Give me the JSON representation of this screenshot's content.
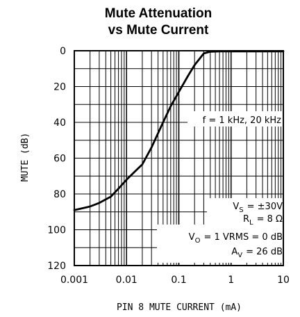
{
  "chart_data": {
    "type": "line",
    "title_line1": "Mute Attenuation",
    "title_line2": "vs Mute Current",
    "xlabel": "PIN 8 MUTE CURRENT (mA)",
    "ylabel": "MUTE (dB)",
    "xscale": "log",
    "xlim": [
      0.001,
      10
    ],
    "ylim": [
      0,
      120
    ],
    "y_inverted": true,
    "grid": true,
    "x_ticks": [
      "0.001",
      "0.01",
      "0.1",
      "1",
      "10"
    ],
    "y_ticks": [
      "0",
      "20",
      "40",
      "60",
      "80",
      "100",
      "120"
    ],
    "x": [
      0.001,
      0.002,
      0.003,
      0.005,
      0.007,
      0.01,
      0.015,
      0.02,
      0.03,
      0.05,
      0.07,
      0.1,
      0.15,
      0.2,
      0.3,
      0.4,
      0.6,
      1,
      3,
      10
    ],
    "series": [
      {
        "values": [
          89,
          87,
          85,
          81.5,
          77,
          72,
          67,
          63.5,
          54,
          40,
          31,
          23,
          14,
          8,
          1.5,
          0.5,
          0.3,
          0.3,
          0.3,
          0.3
        ]
      }
    ],
    "annotations": {
      "freq": "f = 1 kHz, 20 kHz",
      "vs_main": "V",
      "vs_sub": "S",
      "vs_rest": "= ±30V",
      "rl_main": "R",
      "rl_sub": "L",
      "rl_rest": "= 8 Ω",
      "vo_main": "V",
      "vo_sub": "O",
      "vo_rest": "= 1 VRMS = 0 dB",
      "av_main": "A",
      "av_sub": "V",
      "av_rest": "= 26 dB"
    }
  }
}
